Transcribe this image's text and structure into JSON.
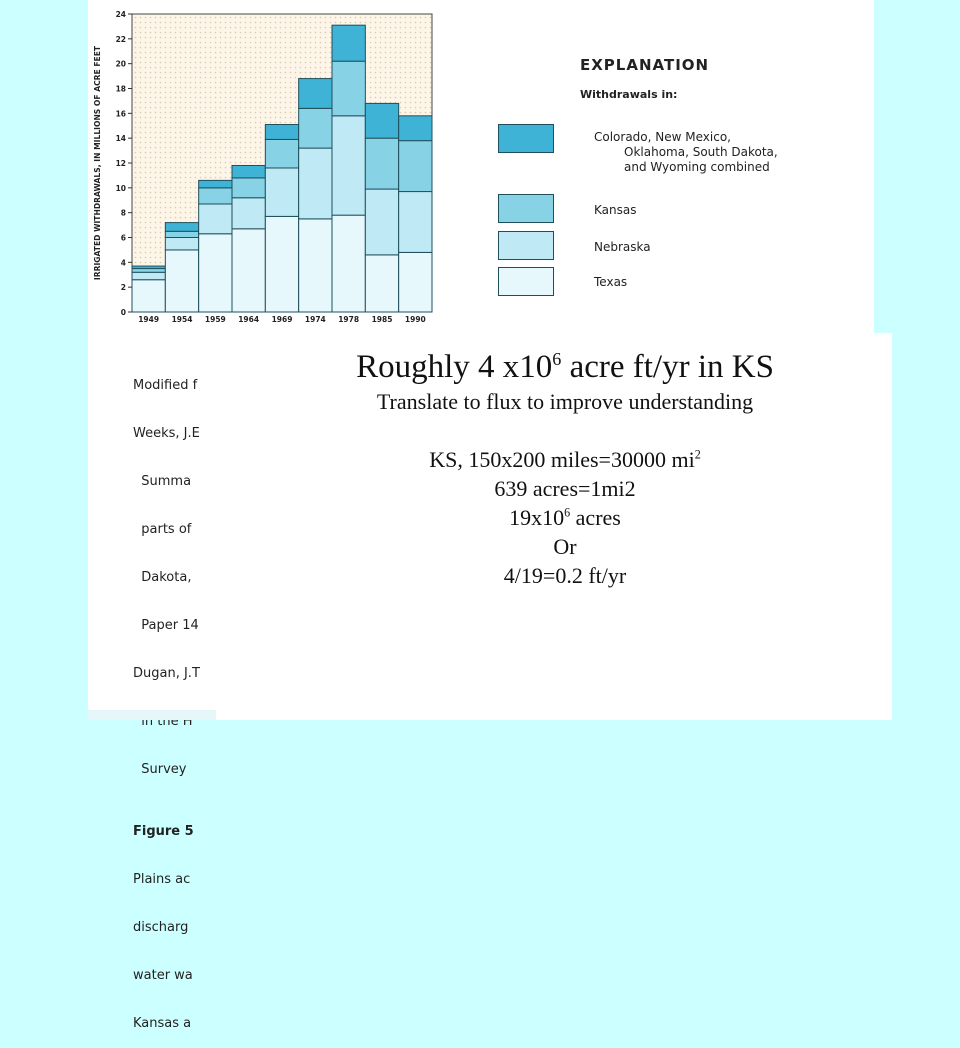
{
  "chart_data": {
    "type": "bar",
    "stacked": true,
    "categories": [
      "1949",
      "1954",
      "1959",
      "1964",
      "1969",
      "1974",
      "1978",
      "1985",
      "1990"
    ],
    "series": [
      {
        "name": "Texas",
        "values": [
          2.6,
          5.0,
          6.3,
          6.7,
          7.7,
          7.5,
          7.8,
          4.6,
          4.8
        ],
        "color": "#e6f8fc"
      },
      {
        "name": "Nebraska",
        "values": [
          0.6,
          1.0,
          2.4,
          2.5,
          3.9,
          5.7,
          8.0,
          5.3,
          4.9
        ],
        "color": "#bfeaf5"
      },
      {
        "name": "Kansas",
        "values": [
          0.3,
          0.5,
          1.3,
          1.6,
          2.3,
          3.2,
          4.4,
          4.1,
          4.1
        ],
        "color": "#88d2e6"
      },
      {
        "name": "Colorado, New Mexico, Oklahoma, South Dakota, and Wyoming combined",
        "values": [
          0.2,
          0.7,
          0.6,
          1.0,
          1.2,
          2.4,
          2.9,
          2.8,
          2.0
        ],
        "color": "#3fb3d6"
      }
    ],
    "ylabel": "IRRIGATED WITHDRAWALS, IN MILLIONS OF ACRE FEET",
    "yticks": [
      "0",
      "2",
      "4",
      "6",
      "8",
      "10",
      "12",
      "14",
      "16",
      "18",
      "20",
      "22",
      "24"
    ],
    "ylim": [
      0,
      24
    ],
    "legend": "right"
  },
  "explanation": {
    "title": "EXPLANATION",
    "subtitle": "Withdrawals in:",
    "items": [
      {
        "lines": [
          "Colorado, New Mexico,",
          "Oklahoma, South Dakota,",
          "and Wyoming combined"
        ]
      },
      {
        "lines": [
          "Kansas"
        ]
      },
      {
        "lines": [
          "Nebraska"
        ]
      },
      {
        "lines": [
          "Texas"
        ]
      }
    ]
  },
  "background_caption": {
    "lines": [
      "Modified f",
      "Weeks, J.E",
      "  Summa",
      "  parts of",
      "  Dakota,",
      "  Paper 14",
      "Dugan, J.T",
      "  in the H",
      "  Survey "
    ],
    "figure_label": "Figure 5",
    "figure_lines": [
      "Plains ac",
      "discharg",
      "water wa",
      "Kansas a"
    ]
  },
  "overlay": {
    "headline_pre": "Roughly 4 x10",
    "headline_sup": "6",
    "headline_post": " acre ft/yr in KS",
    "line1": "Translate to flux to improve understanding",
    "line2_pre": "KS, 150x200 miles=30000 mi",
    "line2_sup": "2",
    "line3": "639 acres=1mi2",
    "line4_pre": "19x10",
    "line4_sup": "6",
    "line4_post": " acres",
    "line5": "Or",
    "line6": "4/19=0.2 ft/yr"
  }
}
